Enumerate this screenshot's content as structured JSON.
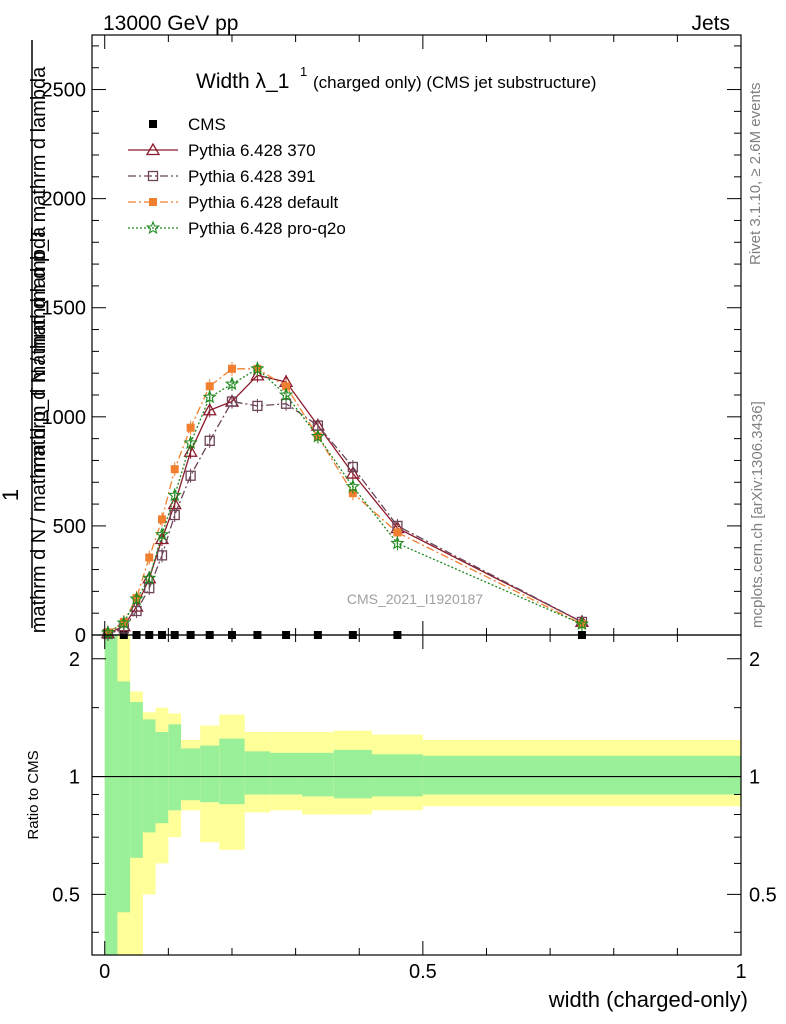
{
  "header": {
    "energy_label": "13000 GeV pp",
    "process_label": "Jets",
    "rivet_label": "Rivet 3.1.10, ≥ 2.6M events",
    "mcplots_label": "mcplots.cern.ch [arXiv:1306.3436]"
  },
  "chart_data": {
    "type": "line",
    "title": "Width λ_1",
    "title_superscript": "1",
    "subtitle": "(charged only) (CMS jet substructure)",
    "analysis_label": "CMS_2021_I1920187",
    "xlabel": "width (charged-only)",
    "ylabel_top": "1",
    "ylabel_numerator": "mathrm d N / mathrm d p_T mathrm d lambda",
    "ylabel_denominator": "mathrm d N / mathrm d p_T mathrm d lambda",
    "ratio_ylabel": "Ratio to CMS",
    "xlim": [
      -0.02,
      1.0
    ],
    "ylim": [
      0,
      2750
    ],
    "ratio_ylim": [
      0.35,
      2.3
    ],
    "x_ticks": [
      "0",
      "0.5",
      "1"
    ],
    "y_ticks": [
      "0",
      "500",
      "1000",
      "1500",
      "2000",
      "2500"
    ],
    "ratio_y_ticks": [
      "0.5",
      "1",
      "2"
    ],
    "grid": false,
    "legend_position": "top-left",
    "x": [
      0.005,
      0.03,
      0.05,
      0.07,
      0.09,
      0.11,
      0.135,
      0.165,
      0.2,
      0.24,
      0.285,
      0.335,
      0.39,
      0.46,
      0.75
    ],
    "bin_edges": [
      0.0,
      0.02,
      0.04,
      0.06,
      0.08,
      0.1,
      0.12,
      0.15,
      0.18,
      0.22,
      0.26,
      0.31,
      0.36,
      0.42,
      0.5,
      1.0
    ],
    "series": [
      {
        "name": "CMS",
        "color": "#000000",
        "marker": "filled-square",
        "values": [
          0,
          0,
          0,
          0,
          0,
          0,
          0,
          0,
          0,
          0,
          0,
          0,
          0,
          0,
          0
        ]
      },
      {
        "name": "Pythia 6.428 370",
        "color": "#8b1a2b",
        "marker": "open-triangle",
        "dash": "solid",
        "values": [
          8,
          40,
          130,
          260,
          440,
          600,
          840,
          1030,
          1070,
          1190,
          1160,
          960,
          740,
          490,
          60
        ]
      },
      {
        "name": "Pythia 6.428 391",
        "color": "#6b4458",
        "marker": "open-square",
        "dash": "dash-dot",
        "values": [
          5,
          30,
          110,
          215,
          365,
          550,
          730,
          890,
          1070,
          1050,
          1060,
          960,
          770,
          500,
          60
        ]
      },
      {
        "name": "Pythia 6.428 default",
        "color": "#f08030",
        "marker": "filled-square",
        "dash": "dash-dot",
        "values": [
          12,
          60,
          170,
          355,
          530,
          760,
          950,
          1140,
          1220,
          1220,
          1140,
          910,
          650,
          470,
          50
        ]
      },
      {
        "name": "Pythia 6.428 pro-q2o",
        "color": "#1e8a1e",
        "marker": "star",
        "dash": "dotted",
        "values": [
          10,
          55,
          165,
          260,
          460,
          640,
          880,
          1090,
          1150,
          1220,
          1100,
          910,
          680,
          420,
          50
        ]
      }
    ],
    "ratio_bands": {
      "inner_color": "#99f099",
      "outer_color": "#ffff99",
      "reference_value": 1,
      "inner_hi": [
        2.3,
        1.75,
        1.55,
        1.4,
        1.3,
        1.36,
        1.18,
        1.2,
        1.25,
        1.16,
        1.15,
        1.15,
        1.17,
        1.14,
        1.13
      ],
      "inner_lo": [
        0.3,
        0.45,
        0.62,
        0.72,
        0.76,
        0.82,
        0.87,
        0.86,
        0.85,
        0.9,
        0.9,
        0.89,
        0.88,
        0.89,
        0.9
      ],
      "outer_hi": [
        2.3,
        2.3,
        1.65,
        1.46,
        1.5,
        1.45,
        1.24,
        1.35,
        1.44,
        1.3,
        1.3,
        1.3,
        1.31,
        1.28,
        1.24
      ],
      "outer_lo": [
        0.3,
        0.3,
        0.35,
        0.5,
        0.6,
        0.7,
        0.82,
        0.68,
        0.65,
        0.81,
        0.82,
        0.8,
        0.8,
        0.82,
        0.84
      ]
    }
  }
}
